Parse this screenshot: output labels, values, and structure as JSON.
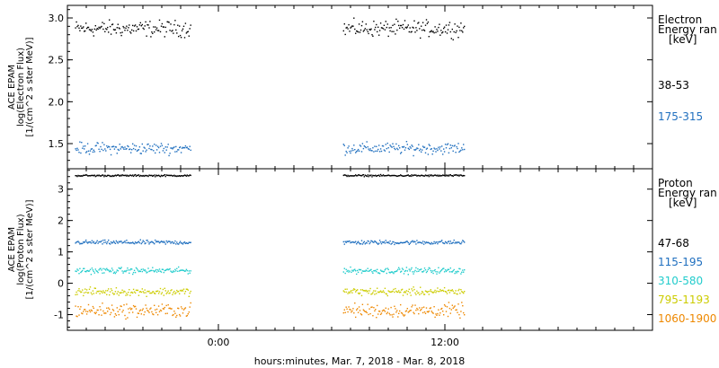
{
  "xlabel": "hours:minutes, Mar.  7, 2018 - Mar.  8, 2018",
  "x_tick_labels": [
    "0:00",
    "12:00"
  ],
  "chart_data": [
    {
      "type": "scatter",
      "ylabel_lines": [
        "ACE EPAM",
        "log(Electron Flux)",
        "[1/(cm^2 s ster MeV)]"
      ],
      "ylim": [
        1.2,
        3.15
      ],
      "y_ticks": [
        1.5,
        2.0,
        2.5,
        3.0
      ],
      "y_tick_labels": [
        "1.5",
        "2.0",
        "2.5",
        "3.0"
      ],
      "x_range_hours": [
        -8,
        23
      ],
      "data_segments_hours": [
        [
          -7.6,
          -1.5
        ],
        [
          6.6,
          13.0
        ]
      ],
      "legend": {
        "title_lines": [
          "Electron",
          "Energy ran",
          "[keV]"
        ],
        "entries": [
          {
            "name": "38-53",
            "color": "#000000"
          },
          {
            "name": "175-315",
            "color": "#1f6fbf"
          }
        ]
      },
      "series": [
        {
          "name": "38-53",
          "color": "#000000",
          "mean": 2.88,
          "spread": 0.07
        },
        {
          "name": "175-315",
          "color": "#1f6fbf",
          "mean": 1.45,
          "spread": 0.05
        }
      ]
    },
    {
      "type": "scatter",
      "ylabel_lines": [
        "ACE EPAM",
        "log(Proton Flux)",
        "[1/(cm^2 s ster MeV)]"
      ],
      "ylim": [
        -1.5,
        3.65
      ],
      "y_ticks": [
        -1,
        0,
        1,
        2,
        3
      ],
      "y_tick_labels": [
        "-1",
        "0",
        "1",
        "2",
        "3"
      ],
      "x_range_hours": [
        -8,
        23
      ],
      "data_segments_hours": [
        [
          -7.6,
          -1.5
        ],
        [
          6.6,
          13.0
        ]
      ],
      "legend": {
        "title_lines": [
          "Proton",
          "Energy ran",
          "[keV]"
        ],
        "entries": [
          {
            "name": "47-68",
            "color": "#000000"
          },
          {
            "name": "115-195",
            "color": "#1f6fbf"
          },
          {
            "name": "310-580",
            "color": "#22cccc"
          },
          {
            "name": "795-1193",
            "color": "#cccc00"
          },
          {
            "name": "1060-1900",
            "color": "#ee8800"
          }
        ]
      },
      "series": [
        {
          "name": "47-68",
          "color": "#000000",
          "mean": 3.45,
          "spread": 0.02
        },
        {
          "name": "115-195",
          "color": "#1f6fbf",
          "mean": 1.32,
          "spread": 0.05
        },
        {
          "name": "310-580",
          "color": "#22cccc",
          "mean": 0.42,
          "spread": 0.07
        },
        {
          "name": "795-1193",
          "color": "#cccc00",
          "mean": -0.25,
          "spread": 0.09
        },
        {
          "name": "1060-1900",
          "color": "#ee8800",
          "mean": -0.85,
          "spread": 0.16
        }
      ]
    }
  ]
}
